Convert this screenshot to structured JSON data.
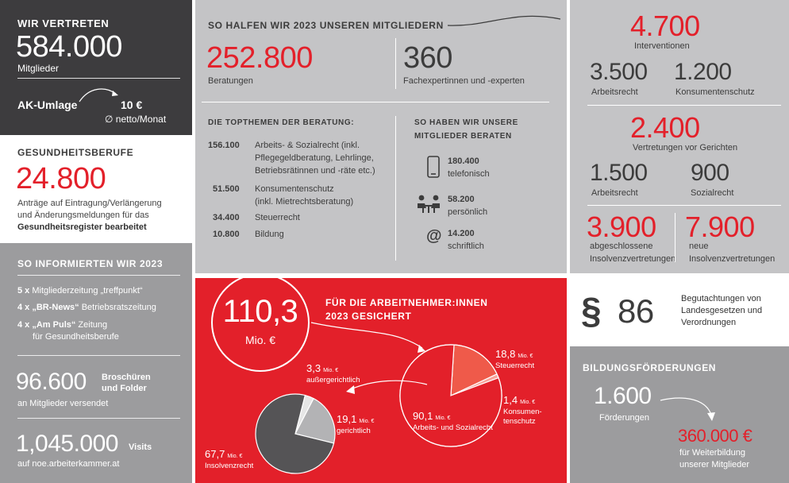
{
  "members": {
    "heading": "WIR VERTRETEN",
    "value": "584.000",
    "label": "Mitglieder",
    "fee_label": "AK-Umlage",
    "fee_value": "10 €",
    "fee_note": "∅ netto/Monat"
  },
  "health": {
    "heading": "GESUNDHEITSBERUFE",
    "value": "24.800",
    "text1": "Anträge auf Eintragung/Verlängerung",
    "text2": "und Änderungsmeldungen für das",
    "text3": "Gesundheitsregister bearbeitet"
  },
  "info": {
    "heading": "SO INFORMIERTEN WIR 2023",
    "items": [
      {
        "count": "5 x",
        "title": "Mitgliederzeitung „treffpunkt“",
        "rest": ""
      },
      {
        "count": "4 x",
        "title": "„BR-News“",
        "rest": " Betriebsratszeitung"
      },
      {
        "count": "4 x",
        "title": "„Am Puls“",
        "rest": " Zeitung"
      }
    ],
    "item3_line2": "für Gesundheitsberufe",
    "brochures_value": "96.600",
    "brochures_label1": "Broschüren",
    "brochures_label2": "und Folder",
    "brochures_note": "an Mitglieder versendet",
    "visits_value": "1,045.000",
    "visits_label": "Visits",
    "visits_note": "auf noe.arbeiterkammer.at"
  },
  "help": {
    "heading": "SO HALFEN WIR 2023 UNSEREN MITGLIEDERN",
    "consult_value": "252.800",
    "consult_label": "Beratungen",
    "experts_value": "360",
    "experts_label": "Fachexpertinnen und -experten",
    "topics_heading": "DIE TOPTHEMEN DER BERATUNG:",
    "topics": [
      {
        "value": "156.100",
        "lines": [
          "Arbeits- & Sozialrecht (inkl.",
          "Pflegegeldberatung, Lehrlinge,",
          "Betriebsrätinnen und -räte etc.)"
        ]
      },
      {
        "value": "51.500",
        "lines": [
          "Konsumentenschutz",
          "(inkl. Mietrechtsberatung)"
        ]
      },
      {
        "value": "34.400",
        "lines": [
          "Steuerrecht"
        ]
      },
      {
        "value": "10.800",
        "lines": [
          "Bildung"
        ]
      }
    ],
    "channels_heading1": "SO HABEN WIR UNSERE",
    "channels_heading2": "MITGLIEDER BERATEN",
    "channels": [
      {
        "value": "180.400",
        "label": "telefonisch",
        "icon": "phone-icon"
      },
      {
        "value": "58.200",
        "label": "persönlich",
        "icon": "meeting-icon"
      },
      {
        "value": "14.200",
        "label": "schriftlich",
        "icon": "at-icon"
      }
    ]
  },
  "interventions": {
    "value": "4.700",
    "label": "Interventionen",
    "work_value": "3.500",
    "work_label": "Arbeitsrecht",
    "consumer_value": "1.200",
    "consumer_label": "Konsumentenschutz",
    "court_value": "2.400",
    "court_label": "Vertretungen vor Gerichten",
    "court_work_value": "1.500",
    "court_work_label": "Arbeitsrecht",
    "court_social_value": "900",
    "court_social_label": "Sozialrecht",
    "closed_value": "3.900",
    "closed_label1": "abgeschlossene",
    "closed_label2": "Insolvenzvertretungen",
    "new_value": "7.900",
    "new_label1": "neue",
    "new_label2": "Insolvenzvertretungen"
  },
  "secured": {
    "total": "110,3",
    "total_unit": "Mio. €",
    "heading1": "FÜR DIE ARBEITNEHMER:INNEN",
    "heading2": "2023 GESICHERT",
    "unit_small": "Mio. €"
  },
  "chart_data": [
    {
      "type": "pie",
      "title": "",
      "categories": [
        "Arbeits- und Sozialrecht",
        "Steuerrecht",
        "Konsumentenschutz"
      ],
      "values": [
        90.1,
        18.8,
        1.4
      ],
      "labels": [
        "90,1",
        "18,8",
        "1,4"
      ],
      "label_lines": [
        [
          "Arbeits- und Sozialrecht"
        ],
        [
          "Steuerrecht"
        ],
        [
          "Konsumen-",
          "tenschutz"
        ]
      ],
      "colors": [
        "#e3202a",
        "#ef5a4a",
        "#f7a39a"
      ]
    },
    {
      "type": "pie",
      "title": "",
      "categories": [
        "Insolvenzrecht",
        "gerichtlich",
        "außergerichtlich"
      ],
      "values": [
        67.7,
        19.1,
        3.3
      ],
      "labels": [
        "67,7",
        "19,1",
        "3,3"
      ],
      "label_lines": [
        [
          "Insolvenzrecht"
        ],
        [
          "gerichtlich"
        ],
        [
          "außergerichtlich"
        ]
      ],
      "colors": [
        "#555456",
        "#b3b3b5",
        "#e6e6e6"
      ]
    }
  ],
  "law": {
    "symbol": "§",
    "value": "86",
    "text1": "Begutachtungen von",
    "text2": "Landesgesetzen und",
    "text3": "Verordnungen"
  },
  "education": {
    "heading": "BILDUNGSFÖRDERUNGEN",
    "count_value": "1.600",
    "count_label": "Förderungen",
    "amount_value": "360.000 €",
    "amount_label1": "für Weiterbildung",
    "amount_label2": "unserer Mitglieder"
  }
}
